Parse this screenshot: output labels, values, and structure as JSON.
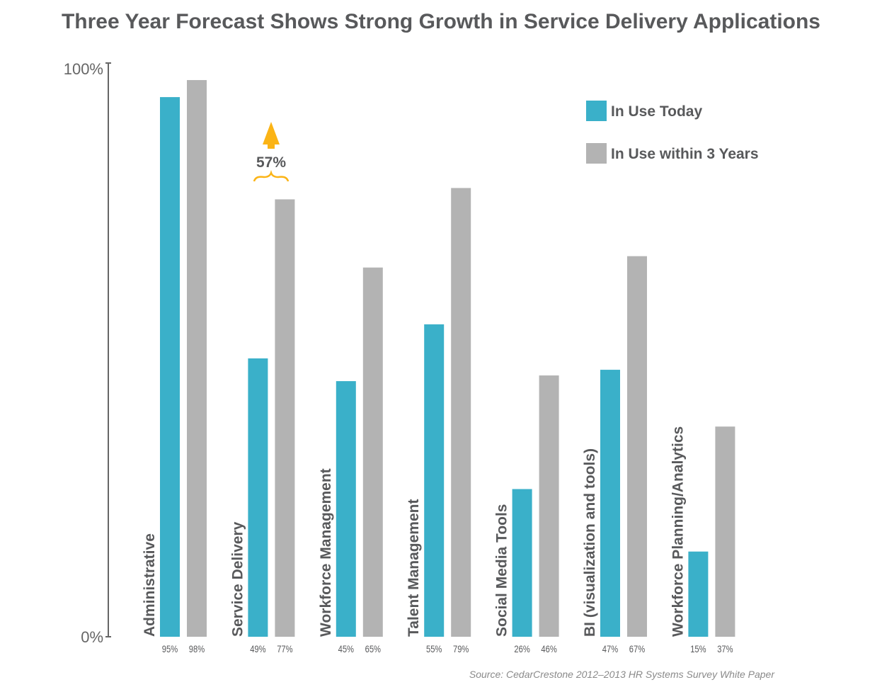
{
  "chart_data": {
    "type": "bar",
    "title": "Three Year Forecast Shows Strong Growth in Service Delivery Applications",
    "categories": [
      "Administrative",
      "Service Delivery",
      "Workforce Management",
      "Talent Management",
      "Social Media Tools",
      "BI (visualization and tools)",
      "Workforce Planning/Analytics"
    ],
    "series": [
      {
        "name": "In Use Today",
        "color": "#3ab0c9",
        "values": [
          95,
          49,
          45,
          55,
          26,
          47,
          15
        ],
        "labels": [
          "95%",
          "49%",
          "45%",
          "55%",
          "26%",
          "47%",
          "15%"
        ]
      },
      {
        "name": "In Use within 3 Years",
        "color": "#b3b3b3",
        "values": [
          98,
          77,
          65,
          79,
          46,
          67,
          37
        ],
        "labels": [
          "98%",
          "77%",
          "65%",
          "79%",
          "46%",
          "67%",
          "37%"
        ]
      }
    ],
    "ylim": [
      0,
      100
    ],
    "yticks": [
      "0%",
      "100%"
    ],
    "legend": "top-right",
    "annotation": {
      "category": "Service Delivery",
      "text": "57%",
      "color": "#fbb416"
    },
    "source": "Source: CedarCrestone 2012–2013 HR Systems Survey White Paper"
  }
}
